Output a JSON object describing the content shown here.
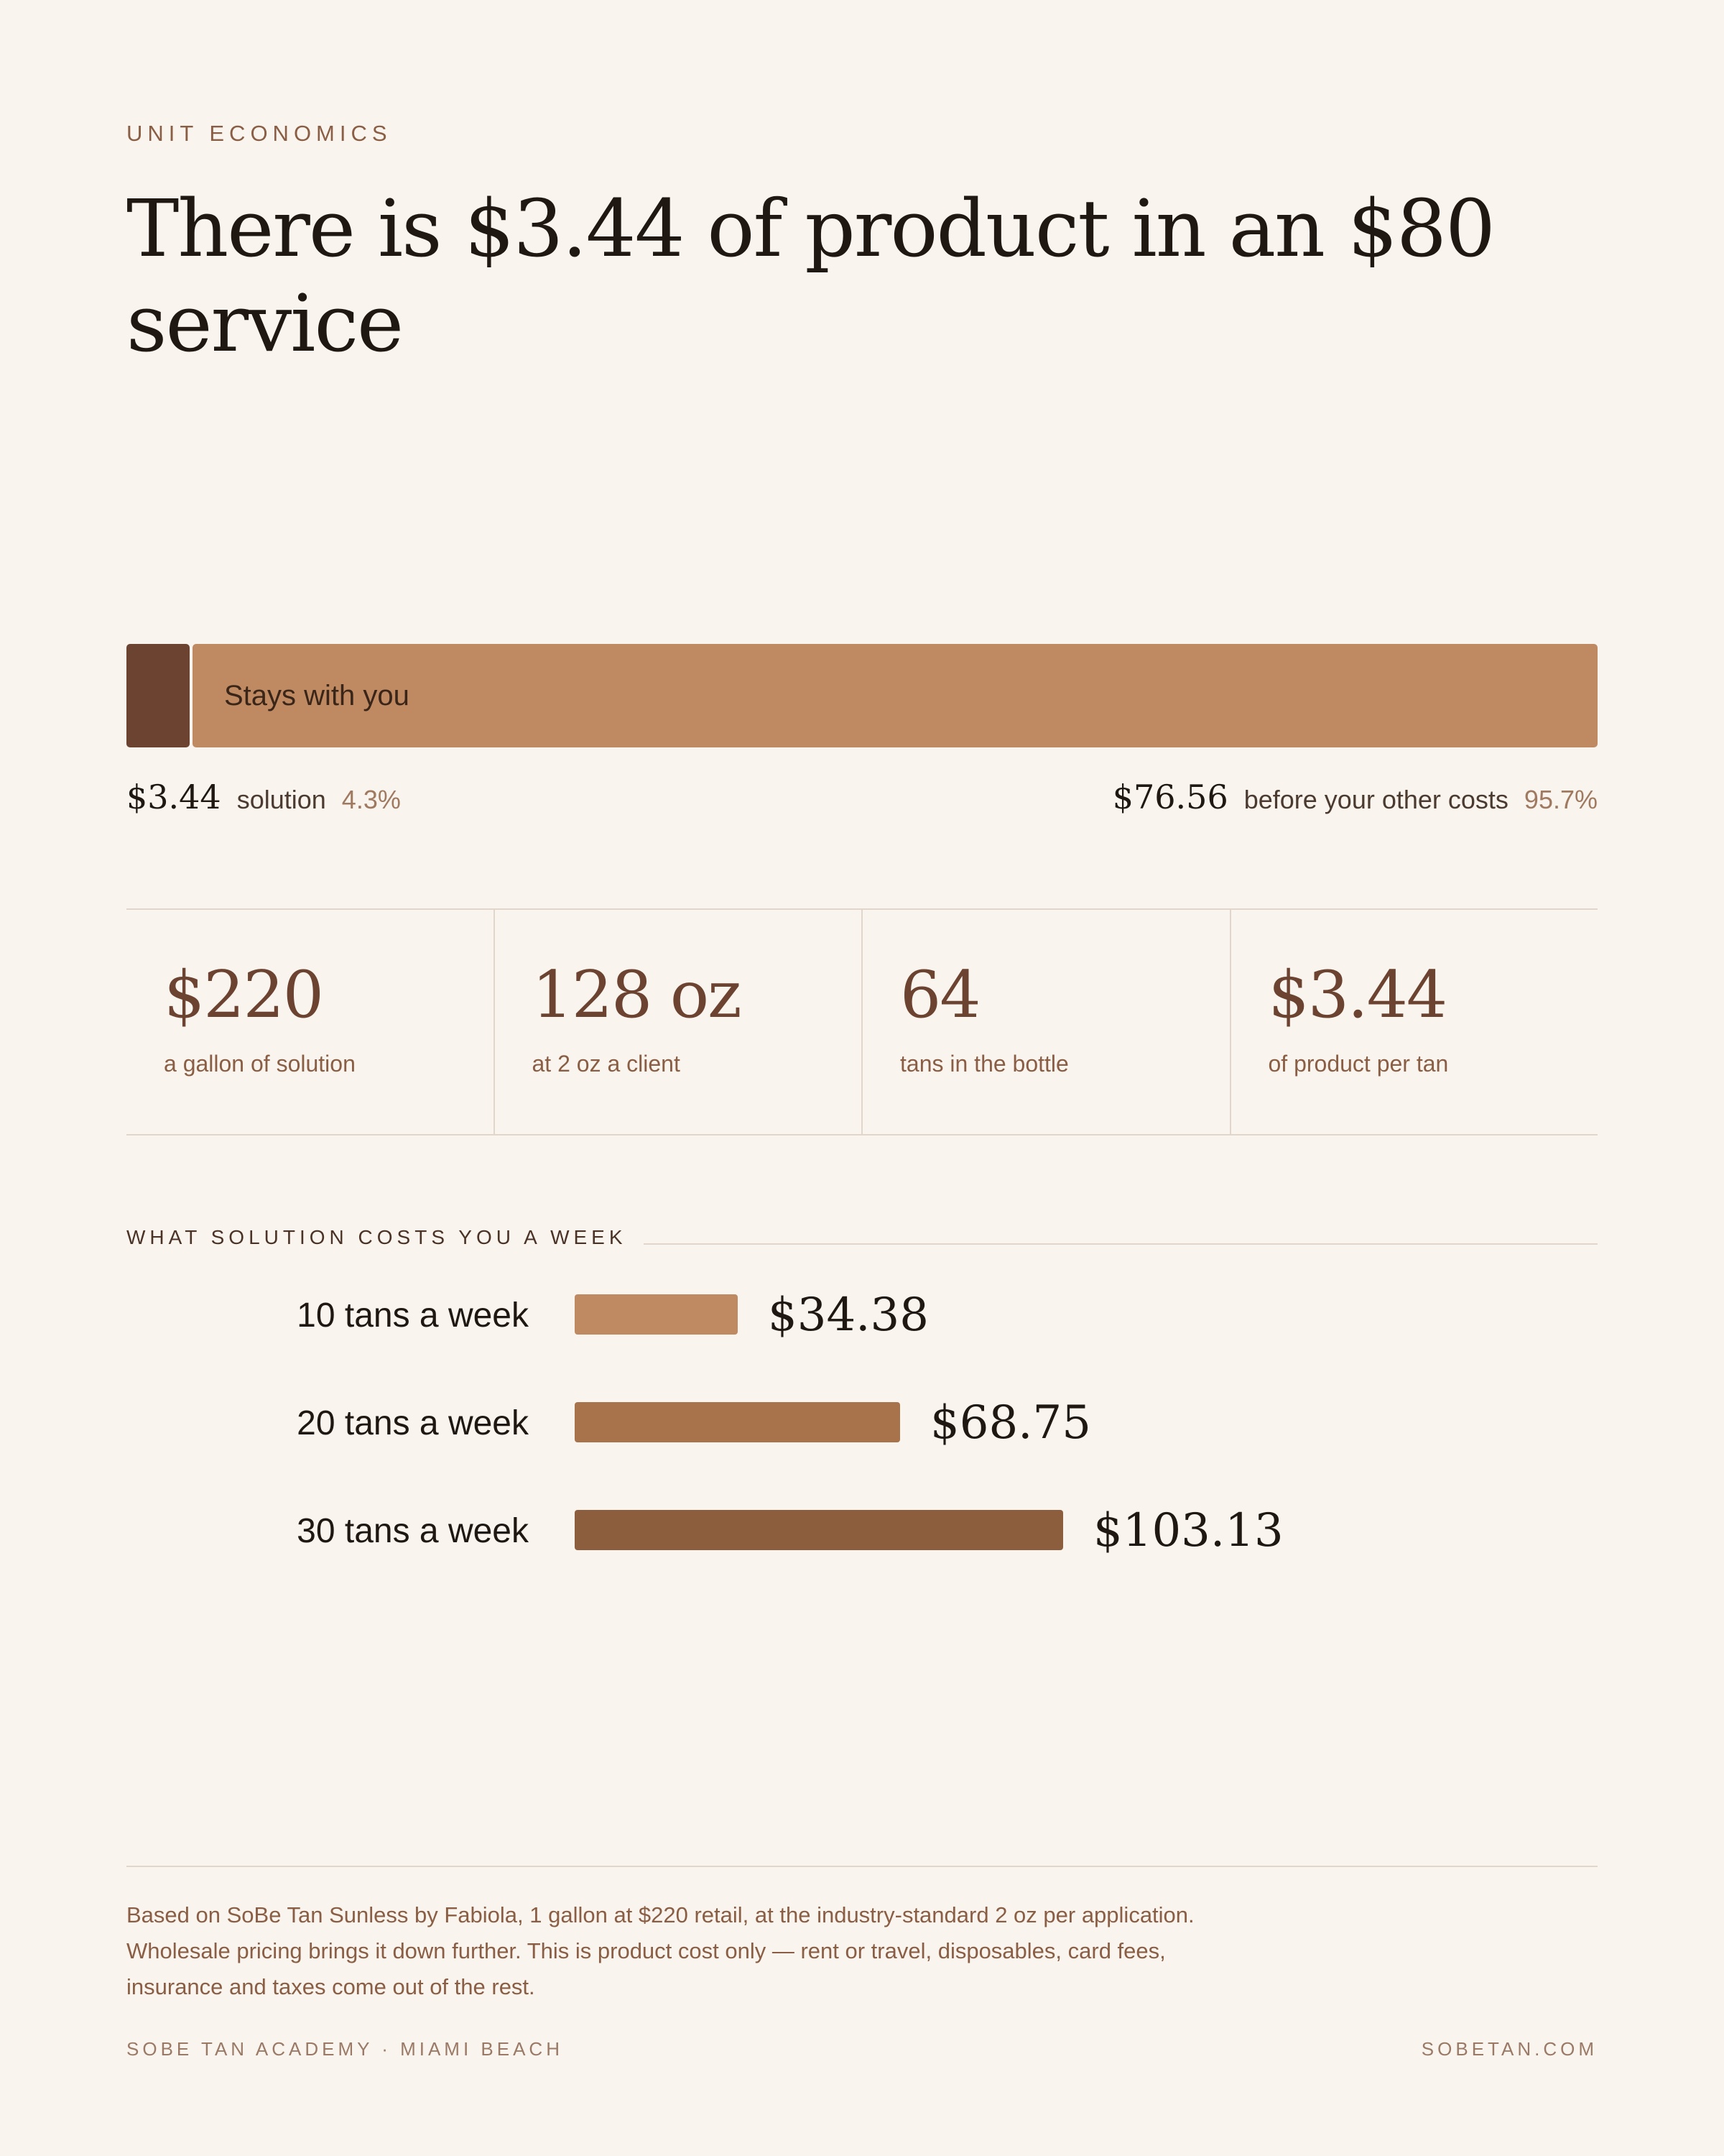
{
  "header": {
    "eyebrow": "UNIT ECONOMICS",
    "headline": "There is $3.44 of product in an $80 service"
  },
  "colors": {
    "background": "#f9f4ee",
    "solution_segment": "#6b4330",
    "remainder_segment": "#bf8a62",
    "bar_10": "#bf8a62",
    "bar_20": "#a8724a",
    "bar_30": "#8d5e3d"
  },
  "split": {
    "solution": {
      "amount": "$3.44",
      "label": "solution",
      "percent_label": "4.3%",
      "share": 0.043
    },
    "remainder": {
      "bar_label": "Stays with you",
      "amount": "$76.56",
      "label": "before your other costs",
      "percent_label": "95.7%",
      "share": 0.957
    }
  },
  "stats": [
    {
      "value": "$220",
      "caption": "a gallon of solution"
    },
    {
      "value": "128 oz",
      "caption": "at 2 oz a client"
    },
    {
      "value": "64",
      "caption": "tans in the bottle"
    },
    {
      "value": "$3.44",
      "caption": "of product per tan"
    }
  ],
  "weekly": {
    "title": "WHAT SOLUTION COSTS YOU A WEEK"
  },
  "chart_data": [
    {
      "type": "bar",
      "orientation": "horizontal",
      "title": "WHAT SOLUTION COSTS YOU A WEEK",
      "categories": [
        "10 tans a week",
        "20 tans a week",
        "30 tans a week"
      ],
      "values": [
        34.38,
        68.75,
        103.13
      ],
      "value_labels": [
        "$34.38",
        "$68.75",
        "$103.13"
      ],
      "colors": [
        "#bf8a62",
        "#a8724a",
        "#8d5e3d"
      ],
      "xlim": [
        0,
        103.13
      ],
      "grid": false
    }
  ],
  "footer": {
    "note": "Based on SoBe Tan Sunless by Fabiola, 1 gallon at $220 retail, at the industry-standard 2 oz per application. Wholesale pricing brings it down further. This is product cost only — rent or travel, disposables, card fees, insurance and taxes come out of the rest.",
    "brand": "SOBE TAN ACADEMY · MIAMI BEACH",
    "site": "SOBETAN.COM"
  }
}
